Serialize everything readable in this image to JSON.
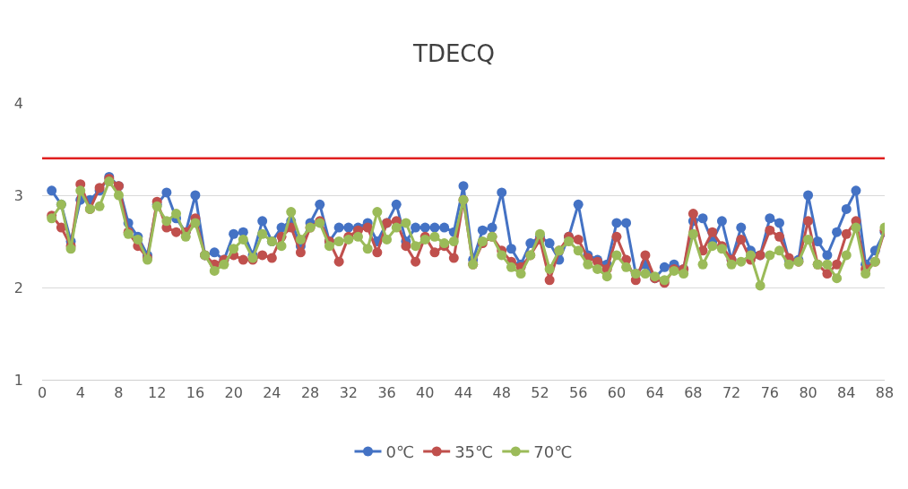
{
  "chart_data": {
    "type": "line",
    "title": "TDECQ",
    "x": [
      1,
      2,
      3,
      4,
      5,
      6,
      7,
      8,
      9,
      10,
      11,
      12,
      13,
      14,
      15,
      16,
      17,
      18,
      19,
      20,
      21,
      22,
      23,
      24,
      25,
      26,
      27,
      28,
      29,
      30,
      31,
      32,
      33,
      34,
      35,
      36,
      37,
      38,
      39,
      40,
      41,
      42,
      43,
      44,
      45,
      46,
      47,
      48,
      49,
      50,
      51,
      52,
      53,
      54,
      55,
      56,
      57,
      58,
      59,
      60,
      61,
      62,
      63,
      64,
      65,
      66,
      67,
      68,
      69,
      70,
      71,
      72,
      73,
      74,
      75,
      76,
      77,
      78,
      79,
      80,
      81,
      82,
      83,
      84,
      85,
      86,
      87,
      88
    ],
    "series": [
      {
        "name": "0℃",
        "color": "#4472c4",
        "values": [
          3.05,
          2.9,
          2.5,
          2.95,
          2.95,
          3.05,
          3.2,
          3.1,
          2.7,
          2.55,
          2.35,
          2.9,
          3.03,
          2.75,
          2.6,
          3.0,
          2.35,
          2.38,
          2.3,
          2.58,
          2.6,
          2.35,
          2.72,
          2.5,
          2.65,
          2.72,
          2.45,
          2.7,
          2.9,
          2.5,
          2.65,
          2.65,
          2.65,
          2.7,
          2.5,
          2.7,
          2.9,
          2.5,
          2.65,
          2.65,
          2.65,
          2.65,
          2.6,
          3.1,
          2.3,
          2.62,
          2.65,
          3.03,
          2.42,
          2.25,
          2.48,
          2.55,
          2.48,
          2.3,
          2.55,
          2.9,
          2.35,
          2.3,
          2.25,
          2.7,
          2.7,
          2.15,
          2.25,
          2.1,
          2.22,
          2.25,
          2.2,
          2.72,
          2.75,
          2.5,
          2.72,
          2.3,
          2.65,
          2.4,
          2.35,
          2.75,
          2.7,
          2.3,
          2.3,
          3.0,
          2.5,
          2.35,
          2.6,
          2.85,
          3.05,
          2.25,
          2.4,
          2.6
        ]
      },
      {
        "name": "35℃",
        "color": "#c0504d",
        "values": [
          2.78,
          2.65,
          2.45,
          3.12,
          2.85,
          3.08,
          3.18,
          3.1,
          2.6,
          2.45,
          2.32,
          2.93,
          2.65,
          2.6,
          2.6,
          2.75,
          2.35,
          2.25,
          2.3,
          2.35,
          2.3,
          2.3,
          2.35,
          2.32,
          2.55,
          2.65,
          2.38,
          2.65,
          2.72,
          2.5,
          2.28,
          2.55,
          2.62,
          2.65,
          2.38,
          2.7,
          2.72,
          2.45,
          2.28,
          2.55,
          2.38,
          2.45,
          2.32,
          2.95,
          2.25,
          2.48,
          2.55,
          2.4,
          2.28,
          2.22,
          2.35,
          2.52,
          2.08,
          2.4,
          2.55,
          2.52,
          2.32,
          2.28,
          2.2,
          2.55,
          2.3,
          2.08,
          2.35,
          2.1,
          2.05,
          2.2,
          2.2,
          2.8,
          2.4,
          2.6,
          2.45,
          2.3,
          2.52,
          2.3,
          2.35,
          2.62,
          2.55,
          2.32,
          2.28,
          2.72,
          2.25,
          2.15,
          2.25,
          2.58,
          2.72,
          2.2,
          2.28,
          2.62
        ]
      },
      {
        "name": "70℃",
        "color": "#9bbb59",
        "values": [
          2.75,
          2.9,
          2.42,
          3.05,
          2.85,
          2.88,
          3.15,
          3.0,
          2.58,
          2.52,
          2.3,
          2.88,
          2.72,
          2.8,
          2.55,
          2.7,
          2.35,
          2.18,
          2.25,
          2.42,
          2.52,
          2.32,
          2.58,
          2.5,
          2.45,
          2.82,
          2.52,
          2.65,
          2.7,
          2.45,
          2.5,
          2.52,
          2.55,
          2.42,
          2.82,
          2.52,
          2.65,
          2.7,
          2.45,
          2.52,
          2.55,
          2.48,
          2.5,
          2.95,
          2.25,
          2.5,
          2.55,
          2.35,
          2.22,
          2.15,
          2.35,
          2.58,
          2.2,
          2.4,
          2.5,
          2.4,
          2.25,
          2.2,
          2.12,
          2.35,
          2.22,
          2.15,
          2.15,
          2.12,
          2.08,
          2.18,
          2.15,
          2.58,
          2.25,
          2.45,
          2.42,
          2.25,
          2.28,
          2.35,
          2.02,
          2.35,
          2.4,
          2.25,
          2.28,
          2.52,
          2.25,
          2.25,
          2.1,
          2.35,
          2.65,
          2.15,
          2.28,
          2.65
        ]
      }
    ],
    "ref_lines": [
      {
        "axis": "y",
        "value": 3.4,
        "color": "#e02020"
      }
    ],
    "xlim": [
      0,
      88
    ],
    "xticks": [
      0,
      4,
      8,
      12,
      16,
      20,
      24,
      28,
      32,
      36,
      40,
      44,
      48,
      52,
      56,
      60,
      64,
      68,
      72,
      76,
      80,
      84,
      88
    ],
    "ylim": [
      1,
      4
    ],
    "yticks": [
      1,
      2,
      3,
      4
    ],
    "grid": "y",
    "legend": "bottom",
    "marker": "circle",
    "line_style": "solid"
  }
}
